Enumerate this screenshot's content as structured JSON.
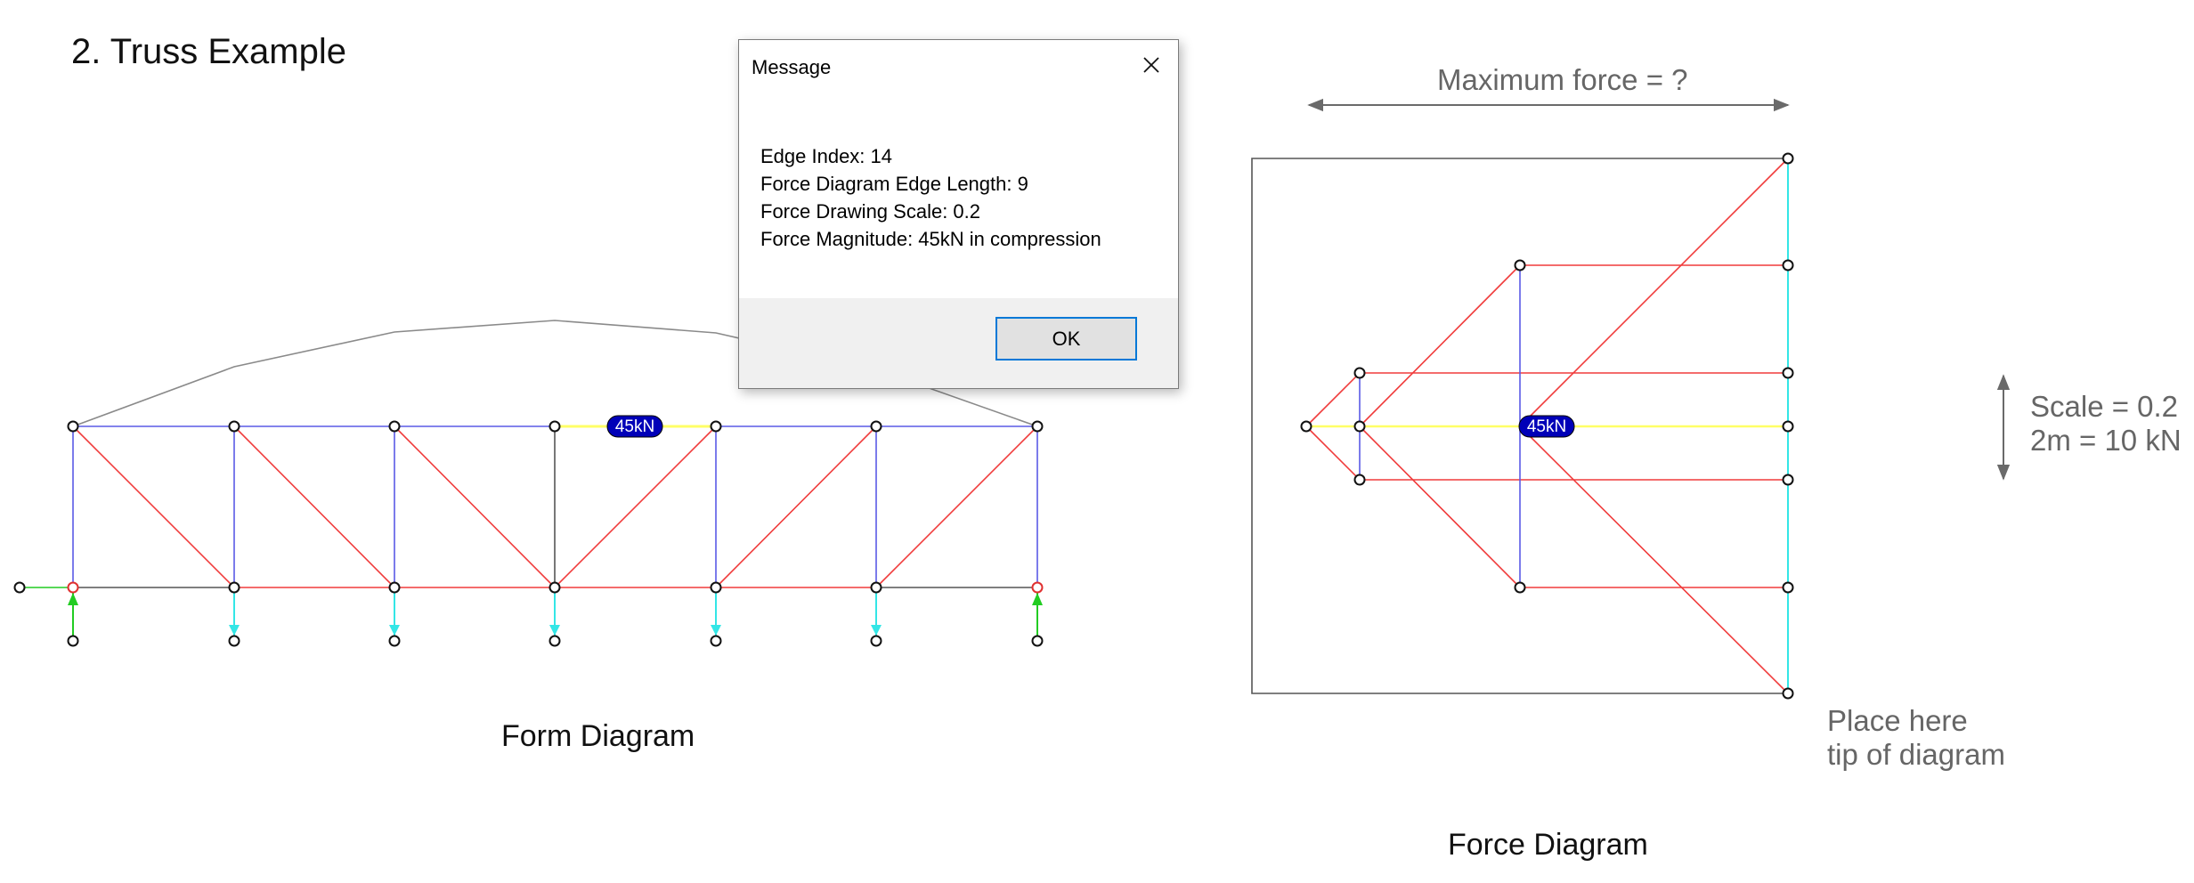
{
  "page": {
    "title": "2. Truss Example"
  },
  "form_diagram": {
    "caption": "Form Diagram",
    "selected_edge_badge": "45kN",
    "colors": {
      "tension": "#f03c3c",
      "compression": "#5a5ae6",
      "neutral": "#555555",
      "selected": "#ffff66",
      "load": "#33e6e6",
      "reaction": "#22cc22",
      "guide_curve": "#8a8a8a"
    }
  },
  "force_diagram": {
    "caption": "Force Diagram",
    "selected_edge_badge": "45kN",
    "max_force_label": "Maximum force = ?",
    "scale_lines": [
      "Scale = 0.2",
      "2m = 10 kN"
    ],
    "tip_hint_lines": [
      "Place here",
      "tip of diagram"
    ]
  },
  "dialog": {
    "title": "Message",
    "lines": [
      "Edge Index: 14",
      "Force Diagram Edge Length: 9",
      "Force Drawing Scale: 0.2",
      "Force Magnitude: 45kN in compression"
    ],
    "ok_label": "OK"
  },
  "icons": {
    "close": "close-icon",
    "arrow": "double-arrow-icon"
  }
}
